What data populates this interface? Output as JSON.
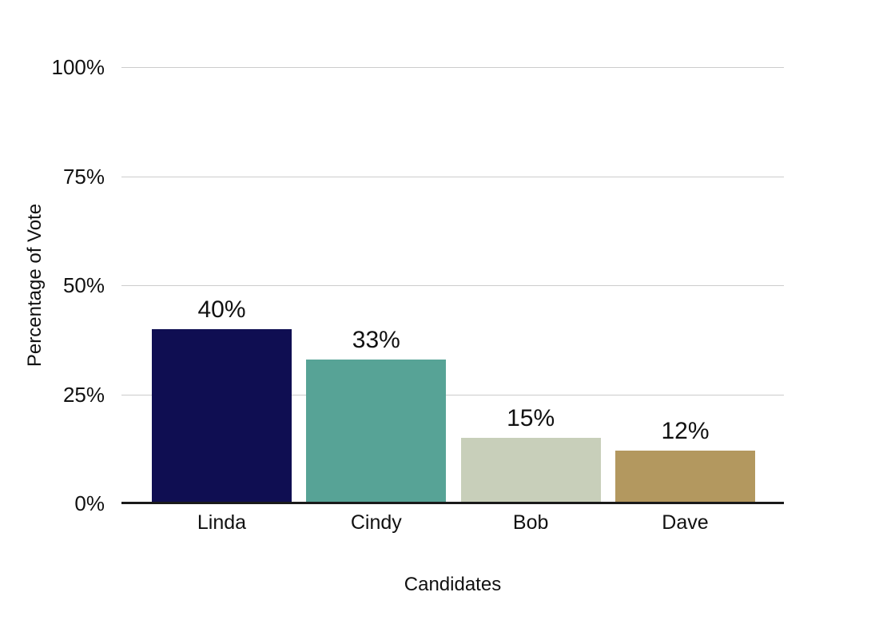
{
  "chart_data": {
    "type": "bar",
    "title": "",
    "xlabel": "Candidates",
    "ylabel": "Percentage of Vote",
    "categories": [
      "Linda",
      "Cindy",
      "Bob",
      "Dave"
    ],
    "values": [
      40,
      33,
      15,
      12
    ],
    "value_labels": [
      "40%",
      "33%",
      "15%",
      "12%"
    ],
    "bar_colors": [
      "#0f0e52",
      "#57a396",
      "#c8cfba",
      "#b3985f"
    ],
    "ylim": [
      0,
      100
    ],
    "yticks": [
      {
        "value": 0,
        "label": "0%"
      },
      {
        "value": 25,
        "label": "25%"
      },
      {
        "value": 50,
        "label": "50%"
      },
      {
        "value": 75,
        "label": "75%"
      },
      {
        "value": 100,
        "label": "100%"
      }
    ],
    "grid": true,
    "legend": false,
    "colors": {
      "background": "#ffffff",
      "gridline": "#cccccc",
      "axis_line": "#1a1a1a",
      "text": "#111111"
    }
  }
}
